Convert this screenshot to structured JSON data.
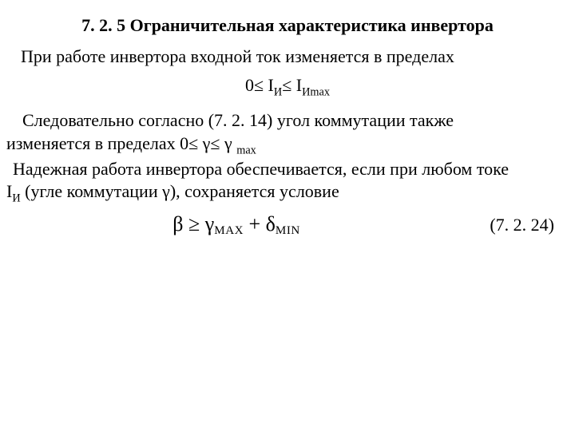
{
  "title": "7. 2. 5 Ограничительная характеристика инвертора",
  "line1": "При работе инвертора входной ток изменяется в пределах",
  "eq1_left": "0≤ I",
  "eq1_sub1": "И",
  "eq1_mid": "≤ I",
  "eq1_sub2": "Иmax",
  "line2a": "Следовательно согласно (7. 2. 14) угол коммутации также",
  "line2b_pre": "изменяется в пределах 0≤ γ≤ γ ",
  "line2b_sub": "max",
  "line3": "Надежная работа инвертора обеспечивается, если при любом токе",
  "line4_pre": "I",
  "line4_sub": "И",
  "line4_post": " (угле коммутации γ), сохраняется условие",
  "eq2_beta": "β",
  "eq2_ge": " ≥ ",
  "eq2_gamma": "γ",
  "eq2_max": "MAX",
  "eq2_plus": " + ",
  "eq2_delta": "δ",
  "eq2_min": "MIN",
  "eq2_num": "(7. 2. 24)"
}
